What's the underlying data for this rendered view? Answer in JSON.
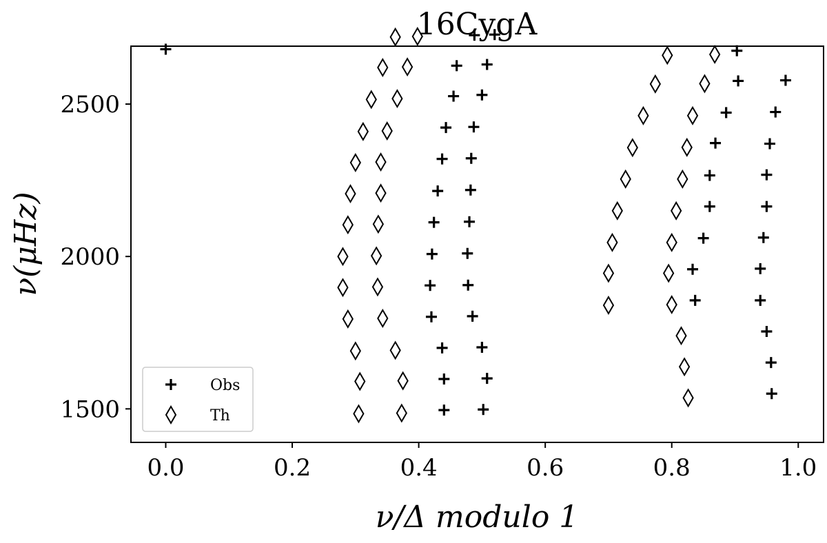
{
  "chart_data": {
    "type": "scatter",
    "title": "16CygA",
    "xlabel": "ν/Δ modulo 1",
    "ylabel": "ν(μHz)",
    "xlim": [
      -0.055,
      1.04
    ],
    "ylim": [
      1390,
      2690
    ],
    "xticks": [
      0.0,
      0.2,
      0.4,
      0.6,
      0.8,
      1.0
    ],
    "xtick_labels": [
      "0.0",
      "0.2",
      "0.4",
      "0.6",
      "0.8",
      "1.0"
    ],
    "yticks": [
      1500,
      2000,
      2500
    ],
    "ytick_labels": [
      "1500",
      "2000",
      "2500"
    ],
    "grid": false,
    "legend_position": "lower-left",
    "series": [
      {
        "name": "Obs",
        "marker": "plus",
        "points": [
          [
            0.0,
            2680
          ],
          [
            0.488,
            2726
          ],
          [
            0.52,
            2728
          ],
          [
            0.46,
            2626
          ],
          [
            0.508,
            2630
          ],
          [
            0.455,
            2526
          ],
          [
            0.5,
            2530
          ],
          [
            0.443,
            2423
          ],
          [
            0.487,
            2425
          ],
          [
            0.437,
            2320
          ],
          [
            0.483,
            2322
          ],
          [
            0.43,
            2215
          ],
          [
            0.482,
            2218
          ],
          [
            0.424,
            2112
          ],
          [
            0.48,
            2114
          ],
          [
            0.421,
            2008
          ],
          [
            0.477,
            2010
          ],
          [
            0.418,
            1905
          ],
          [
            0.478,
            1906
          ],
          [
            0.42,
            1802
          ],
          [
            0.485,
            1804
          ],
          [
            0.437,
            1700
          ],
          [
            0.5,
            1702
          ],
          [
            0.44,
            1598
          ],
          [
            0.508,
            1600
          ],
          [
            0.44,
            1496
          ],
          [
            0.502,
            1498
          ],
          [
            0.903,
            2675
          ],
          [
            0.905,
            2576
          ],
          [
            0.98,
            2578
          ],
          [
            0.886,
            2472
          ],
          [
            0.964,
            2474
          ],
          [
            0.869,
            2372
          ],
          [
            0.955,
            2370
          ],
          [
            0.86,
            2266
          ],
          [
            0.95,
            2268
          ],
          [
            0.86,
            2164
          ],
          [
            0.95,
            2164
          ],
          [
            0.85,
            2060
          ],
          [
            0.945,
            2062
          ],
          [
            0.833,
            1958
          ],
          [
            0.94,
            1960
          ],
          [
            0.837,
            1856
          ],
          [
            0.94,
            1856
          ],
          [
            0.95,
            1754
          ],
          [
            0.957,
            1652
          ],
          [
            0.958,
            1550
          ]
        ]
      },
      {
        "name": "Th",
        "marker": "diamond",
        "points": [
          [
            0.363,
            2720
          ],
          [
            0.398,
            2722
          ],
          [
            0.343,
            2620
          ],
          [
            0.382,
            2622
          ],
          [
            0.325,
            2515
          ],
          [
            0.366,
            2518
          ],
          [
            0.312,
            2410
          ],
          [
            0.35,
            2412
          ],
          [
            0.3,
            2308
          ],
          [
            0.34,
            2310
          ],
          [
            0.292,
            2206
          ],
          [
            0.34,
            2208
          ],
          [
            0.288,
            2104
          ],
          [
            0.336,
            2106
          ],
          [
            0.28,
            2000
          ],
          [
            0.333,
            2002
          ],
          [
            0.28,
            1898
          ],
          [
            0.335,
            1900
          ],
          [
            0.288,
            1795
          ],
          [
            0.343,
            1797
          ],
          [
            0.3,
            1690
          ],
          [
            0.363,
            1692
          ],
          [
            0.307,
            1590
          ],
          [
            0.375,
            1592
          ],
          [
            0.305,
            1484
          ],
          [
            0.373,
            1486
          ],
          [
            0.793,
            2660
          ],
          [
            0.868,
            2663
          ],
          [
            0.774,
            2566
          ],
          [
            0.852,
            2567
          ],
          [
            0.755,
            2462
          ],
          [
            0.833,
            2462
          ],
          [
            0.738,
            2357
          ],
          [
            0.824,
            2358
          ],
          [
            0.727,
            2254
          ],
          [
            0.817,
            2254
          ],
          [
            0.714,
            2150
          ],
          [
            0.807,
            2150
          ],
          [
            0.706,
            2046
          ],
          [
            0.8,
            2046
          ],
          [
            0.7,
            1945
          ],
          [
            0.795,
            1945
          ],
          [
            0.7,
            1840
          ],
          [
            0.8,
            1842
          ],
          [
            0.815,
            1740
          ],
          [
            0.82,
            1638
          ],
          [
            0.826,
            1536
          ]
        ]
      }
    ]
  }
}
